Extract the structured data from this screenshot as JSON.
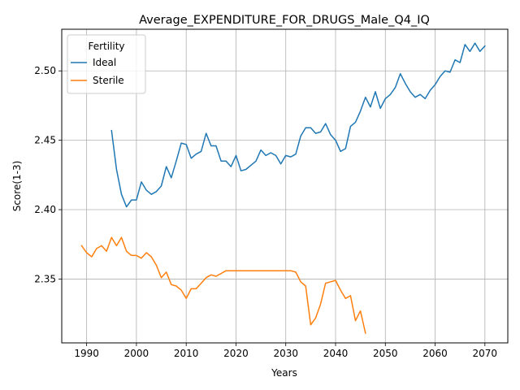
{
  "chart_data": {
    "type": "line",
    "title": "Average_EXPENDITURE_FOR_DRUGS_Male_Q4_IQ",
    "xlabel": "Years",
    "ylabel": "Score(1-3)",
    "xlim": [
      1985.0,
      2074.6
    ],
    "ylim": [
      2.304,
      2.53
    ],
    "xticks": [
      1990,
      2000,
      2010,
      2020,
      2030,
      2040,
      2050,
      2060,
      2070
    ],
    "yticks": [
      2.35,
      2.4,
      2.45,
      2.5
    ],
    "ytick_labels": [
      "2.35",
      "2.40",
      "2.45",
      "2.50"
    ],
    "grid": true,
    "legend": {
      "title": "Fertility",
      "position": "upper-left"
    },
    "series": [
      {
        "name": "Ideal",
        "color": "#1f77b4",
        "x": [
          1995,
          1996,
          1997,
          1998,
          1999,
          2000,
          2001,
          2002,
          2003,
          2004,
          2005,
          2006,
          2007,
          2008,
          2009,
          2010,
          2011,
          2012,
          2013,
          2014,
          2015,
          2016,
          2017,
          2018,
          2019,
          2020,
          2021,
          2022,
          2023,
          2024,
          2025,
          2026,
          2027,
          2028,
          2029,
          2030,
          2031,
          2032,
          2033,
          2034,
          2035,
          2036,
          2037,
          2038,
          2039,
          2040,
          2041,
          2042,
          2043,
          2044,
          2045,
          2046,
          2047,
          2048,
          2049,
          2050,
          2051,
          2052,
          2053,
          2054,
          2055,
          2056,
          2057,
          2058,
          2059,
          2060,
          2061,
          2062,
          2063,
          2064,
          2065,
          2066,
          2067,
          2068,
          2069,
          2070
        ],
        "values": [
          2.457,
          2.429,
          2.411,
          2.402,
          2.407,
          2.407,
          2.42,
          2.414,
          2.411,
          2.413,
          2.417,
          2.431,
          2.423,
          2.435,
          2.448,
          2.447,
          2.437,
          2.44,
          2.442,
          2.455,
          2.446,
          2.446,
          2.435,
          2.435,
          2.431,
          2.439,
          2.428,
          2.429,
          2.432,
          2.435,
          2.443,
          2.439,
          2.441,
          2.439,
          2.433,
          2.439,
          2.438,
          2.44,
          2.453,
          2.459,
          2.459,
          2.455,
          2.456,
          2.462,
          2.454,
          2.45,
          2.442,
          2.444,
          2.46,
          2.463,
          2.471,
          2.481,
          2.474,
          2.485,
          2.473,
          2.48,
          2.483,
          2.488,
          2.498,
          2.491,
          2.485,
          2.481,
          2.483,
          2.48,
          2.486,
          2.49,
          2.496,
          2.5,
          2.499,
          2.508,
          2.506,
          2.519,
          2.514,
          2.52,
          2.514,
          2.518
        ]
      },
      {
        "name": "Sterile",
        "color": "#ff7f0e",
        "x": [
          1989,
          1990,
          1991,
          1992,
          1993,
          1994,
          1995,
          1996,
          1997,
          1998,
          1999,
          2000,
          2001,
          2002,
          2003,
          2004,
          2005,
          2006,
          2007,
          2008,
          2009,
          2010,
          2011,
          2012,
          2013,
          2014,
          2015,
          2016,
          2017,
          2018,
          2019,
          2020,
          2021,
          2022,
          2023,
          2024,
          2025,
          2026,
          2027,
          2028,
          2029,
          2030,
          2031,
          2032,
          2033,
          2034,
          2035,
          2036,
          2037,
          2038,
          2039,
          2040,
          2041,
          2042,
          2043,
          2044,
          2045,
          2046
        ],
        "values": [
          2.374,
          2.369,
          2.366,
          2.372,
          2.374,
          2.37,
          2.38,
          2.374,
          2.38,
          2.37,
          2.367,
          2.367,
          2.365,
          2.369,
          2.366,
          2.36,
          2.351,
          2.355,
          2.346,
          2.345,
          2.342,
          2.336,
          2.343,
          2.343,
          2.347,
          2.351,
          2.353,
          2.352,
          2.354,
          2.356,
          2.356,
          2.356,
          2.356,
          2.356,
          2.356,
          2.356,
          2.356,
          2.356,
          2.356,
          2.356,
          2.356,
          2.356,
          2.356,
          2.355,
          2.348,
          2.345,
          2.317,
          2.322,
          2.332,
          2.347,
          2.348,
          2.349,
          2.342,
          2.336,
          2.338,
          2.32,
          2.327,
          2.311
        ]
      }
    ]
  }
}
